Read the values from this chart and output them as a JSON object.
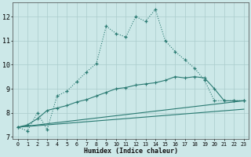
{
  "xlabel": "Humidex (Indice chaleur)",
  "background_color": "#cce8e8",
  "grid_color": "#aacccc",
  "line_color": "#2a7a72",
  "xlim": [
    -0.5,
    23.5
  ],
  "ylim": [
    6.9,
    12.6
  ],
  "yticks": [
    7,
    8,
    9,
    10,
    11,
    12
  ],
  "xticks": [
    0,
    1,
    2,
    3,
    4,
    5,
    6,
    7,
    8,
    9,
    10,
    11,
    12,
    13,
    14,
    15,
    16,
    17,
    18,
    19,
    20,
    21,
    22,
    23
  ],
  "curve_dotted_x": [
    0,
    1,
    2,
    3,
    4,
    5,
    6,
    7,
    8,
    9,
    10,
    11,
    12,
    13,
    14,
    15,
    16,
    17,
    18,
    19,
    20,
    21,
    22,
    23
  ],
  "curve_dotted_y": [
    7.4,
    7.25,
    8.0,
    7.3,
    8.7,
    8.9,
    9.3,
    9.7,
    10.05,
    11.6,
    11.3,
    11.15,
    12.0,
    11.8,
    12.3,
    11.0,
    10.55,
    10.2,
    9.85,
    9.35,
    8.5,
    8.5,
    8.5,
    8.5
  ],
  "curve_solid_x": [
    0,
    1,
    2,
    3,
    4,
    5,
    6,
    7,
    8,
    9,
    10,
    11,
    12,
    13,
    14,
    15,
    16,
    17,
    18,
    19,
    20,
    21,
    22,
    23
  ],
  "curve_solid_y": [
    7.4,
    7.5,
    7.75,
    8.1,
    8.2,
    8.3,
    8.45,
    8.55,
    8.7,
    8.85,
    9.0,
    9.05,
    9.15,
    9.2,
    9.25,
    9.35,
    9.5,
    9.45,
    9.5,
    9.45,
    9.0,
    8.5,
    8.5,
    8.5
  ],
  "line1_x": [
    0,
    23
  ],
  "line1_y": [
    7.4,
    8.5
  ],
  "line2_x": [
    0,
    23
  ],
  "line2_y": [
    7.4,
    8.15
  ]
}
